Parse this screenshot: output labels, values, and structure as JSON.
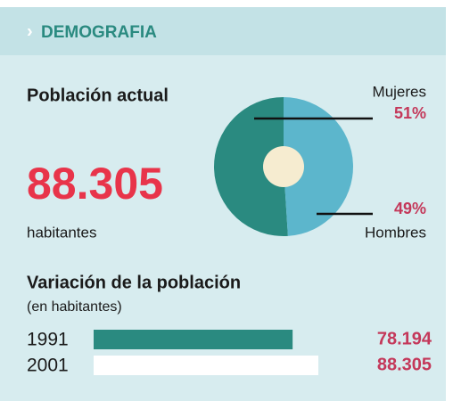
{
  "header": "DEMOGRAFIA",
  "summary": {
    "total": "88.305",
    "unit": "habitantes"
  },
  "chart_data": [
    {
      "type": "pie",
      "title": "Población actual",
      "categories": [
        "Mujeres",
        "Hombres"
      ],
      "values": [
        51,
        49
      ],
      "value_labels": [
        "51%",
        "49%"
      ],
      "colors": [
        "#2a8a80",
        "#5cb6cc"
      ]
    },
    {
      "type": "bar",
      "title": "Variación de la población",
      "subtitle": "(en habitantes)",
      "categories": [
        "1991",
        "2001"
      ],
      "values": [
        78194,
        88305
      ],
      "value_labels": [
        "78.194",
        "88.305"
      ],
      "colors": [
        "#2a8a80",
        "#ffffff"
      ]
    }
  ]
}
